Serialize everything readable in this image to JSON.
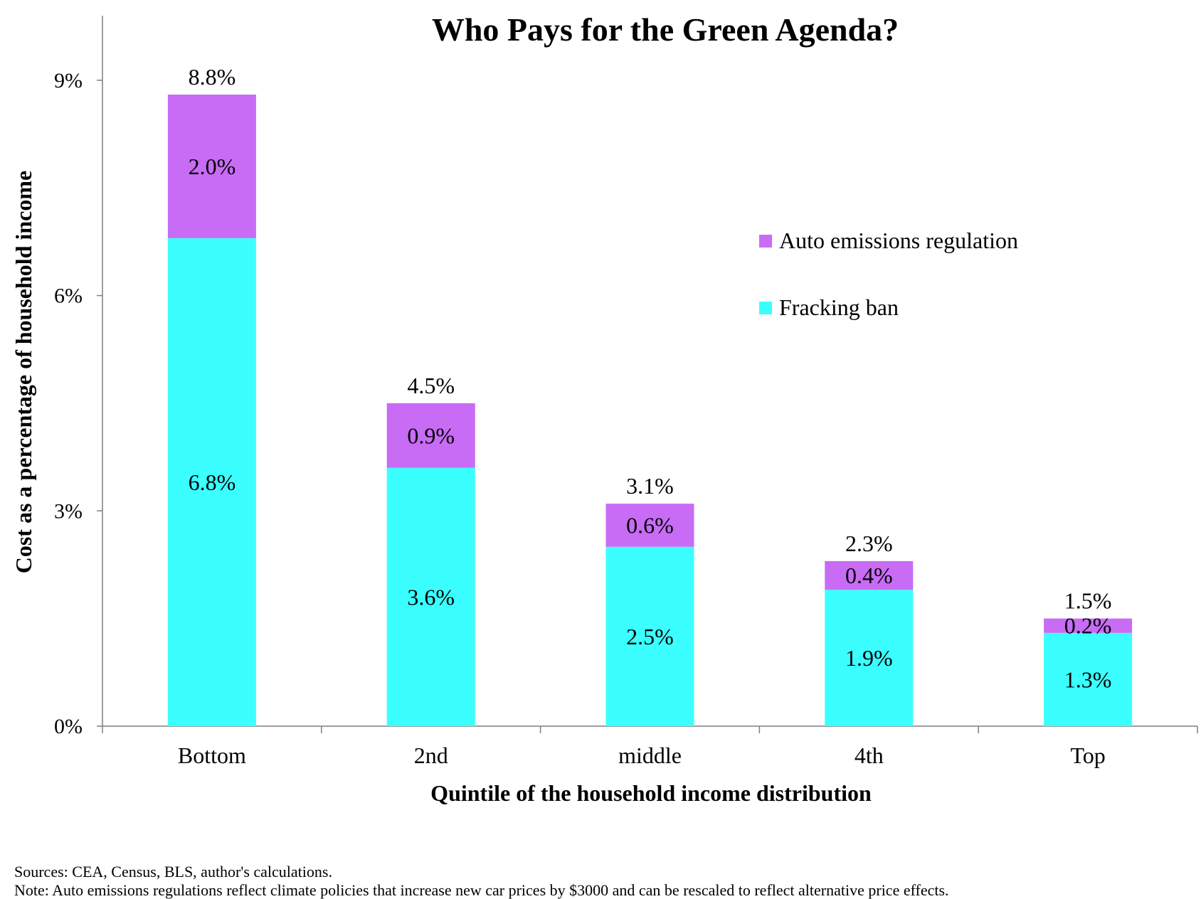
{
  "chart_data": {
    "type": "bar",
    "stacked": true,
    "title": "Who Pays for the Green Agenda?",
    "xlabel": "Quintile of the household income distribution",
    "ylabel": "Cost as a percentage of household income",
    "ylim": [
      0,
      9.9
    ],
    "yticks": [
      {
        "value": 0,
        "label": "0%"
      },
      {
        "value": 3,
        "label": "3%"
      },
      {
        "value": 6,
        "label": "6%"
      },
      {
        "value": 9,
        "label": "9%"
      }
    ],
    "categories": [
      "Bottom",
      "2nd",
      "middle",
      "4th",
      "Top"
    ],
    "series": [
      {
        "name": "Fracking ban",
        "color": "#3BFFFF",
        "values": [
          6.8,
          3.6,
          2.5,
          1.9,
          1.3
        ],
        "labels": [
          "6.8%",
          "3.6%",
          "2.5%",
          "1.9%",
          "1.3%"
        ]
      },
      {
        "name": "Auto emissions regulation",
        "color": "#C86BF5",
        "values": [
          2.0,
          0.9,
          0.6,
          0.4,
          0.2
        ],
        "labels": [
          "2.0%",
          "0.9%",
          "0.6%",
          "0.4%",
          "0.2%"
        ]
      }
    ],
    "totals": [
      8.8,
      4.5,
      3.1,
      2.3,
      1.5
    ],
    "total_labels": [
      "8.8%",
      "4.5%",
      "3.1%",
      "2.3%",
      "1.5%"
    ],
    "legend": {
      "placement": "upper-right",
      "items": [
        "Auto emissions regulation",
        "Fracking ban"
      ]
    },
    "grid": false
  },
  "notes": {
    "sources": "Sources: CEA, Census, BLS, author's calculations.",
    "note": "Note: Auto emissions regulations reflect climate policies that increase new car prices by $3000 and can be rescaled to reflect alternative price effects."
  }
}
